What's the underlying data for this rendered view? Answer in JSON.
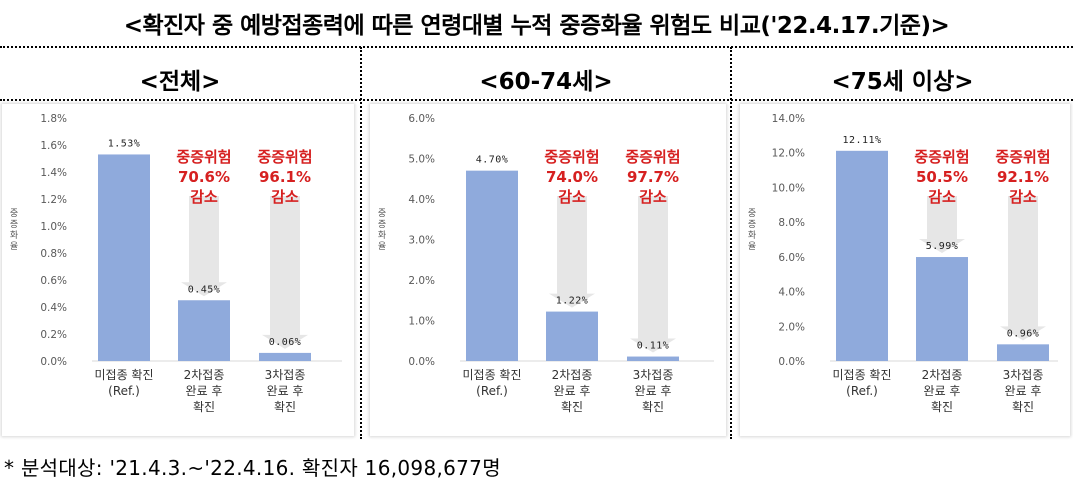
{
  "header": {
    "title": "<확진자 중 예방접종력에 따른 연령대별 누적 중증화율 위험도 비교('22.4.17.기준)>"
  },
  "footnote": "* 분석대상: '21.4.3.~'22.4.16. 확진자 16,098,677명",
  "colors": {
    "bar": "#8faadc",
    "arrow": "#e6e6e6",
    "risk_text": "#d62020",
    "axis_text": "#595959"
  },
  "chart_data": [
    {
      "type": "bar",
      "title": "<전체>",
      "ylabel": "중증화율",
      "ylim": [
        0,
        1.8
      ],
      "ytick_step": 0.2,
      "ytick_decimals": 1,
      "categories": [
        [
          "미접종 확진",
          "(Ref.)"
        ],
        [
          "2차접종",
          "완료 후",
          "확진"
        ],
        [
          "3차접종",
          "완료 후",
          "확진"
        ]
      ],
      "values": [
        1.53,
        0.45,
        0.06
      ],
      "value_labels": [
        "1.53%",
        "0.45%",
        "0.06%"
      ],
      "annotations": [
        {
          "target": 1,
          "lines": [
            "중증위험",
            "70.6%",
            "감소"
          ]
        },
        {
          "target": 2,
          "lines": [
            "중증위험",
            "96.1%",
            "감소"
          ]
        }
      ]
    },
    {
      "type": "bar",
      "title": "<60-74세>",
      "ylabel": "중증화율",
      "ylim": [
        0,
        6
      ],
      "ytick_step": 1,
      "ytick_decimals": 1,
      "categories": [
        [
          "미접종 확진",
          "(Ref.)"
        ],
        [
          "2차접종",
          "완료 후",
          "확진"
        ],
        [
          "3차접종",
          "완료 후",
          "확진"
        ]
      ],
      "values": [
        4.7,
        1.22,
        0.11
      ],
      "value_labels": [
        "4.70%",
        "1.22%",
        "0.11%"
      ],
      "annotations": [
        {
          "target": 1,
          "lines": [
            "중증위험",
            "74.0%",
            "감소"
          ]
        },
        {
          "target": 2,
          "lines": [
            "중증위험",
            "97.7%",
            "감소"
          ]
        }
      ]
    },
    {
      "type": "bar",
      "title": "<75세 이상>",
      "ylabel": "중증화율",
      "ylim": [
        0,
        14
      ],
      "ytick_step": 2,
      "ytick_decimals": 1,
      "categories": [
        [
          "미접종 확진",
          "(Ref.)"
        ],
        [
          "2차접종",
          "완료 후",
          "확진"
        ],
        [
          "3차접종",
          "완료 후",
          "확진"
        ]
      ],
      "values": [
        12.11,
        5.99,
        0.96
      ],
      "value_labels": [
        "12.11%",
        "5.99%",
        "0.96%"
      ],
      "annotations": [
        {
          "target": 1,
          "lines": [
            "중증위험",
            "50.5%",
            "감소"
          ]
        },
        {
          "target": 2,
          "lines": [
            "중증위험",
            "92.1%",
            "감소"
          ]
        }
      ]
    }
  ]
}
